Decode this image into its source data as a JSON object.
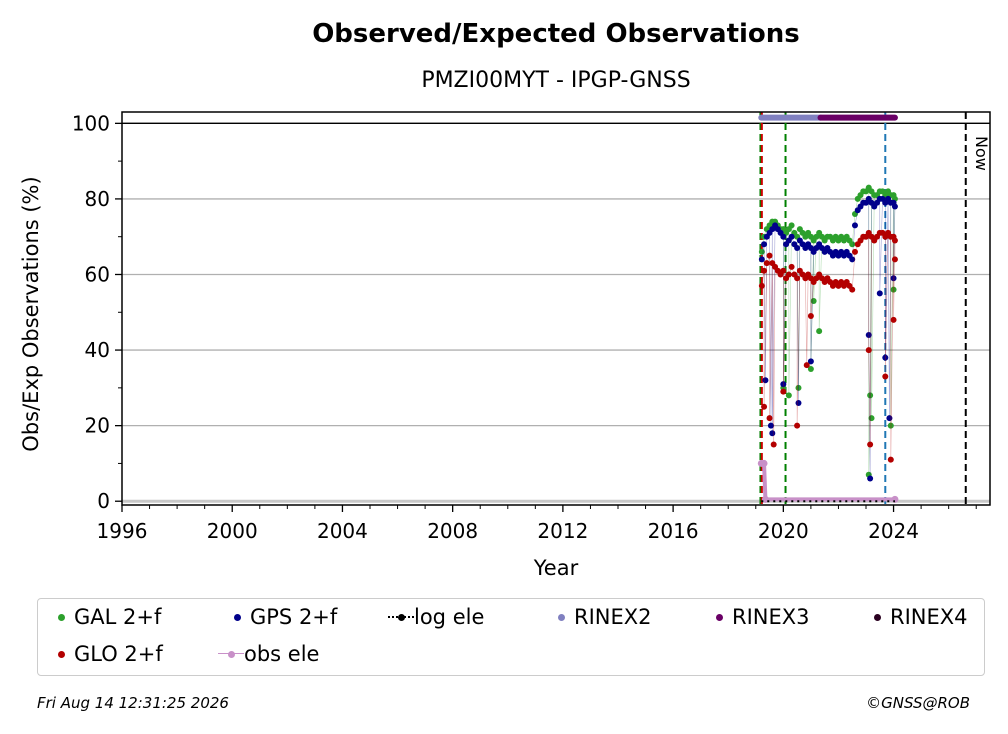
{
  "chart_data": {
    "type": "scatter",
    "title": "Observed/Expected Observations",
    "subtitle": "PMZI00MYT - IPGP-GNSS",
    "xlabel": "Year",
    "ylabel": "Obs/Exp Observations (%)",
    "xlim": [
      1996,
      2027.5
    ],
    "ylim": [
      -1,
      103
    ],
    "xticks": [
      "1996",
      "2000",
      "2004",
      "2008",
      "2012",
      "2016",
      "2020",
      "2024"
    ],
    "yticks": [
      "0",
      "20",
      "40",
      "60",
      "80",
      "100"
    ],
    "grid": "horizontal",
    "now_label": "Now",
    "now_x": 2026.62,
    "event_lines": [
      {
        "x": 2019.17,
        "color": "#008000"
      },
      {
        "x": 2019.22,
        "color": "#cc0000"
      },
      {
        "x": 2020.08,
        "color": "#008000"
      },
      {
        "x": 2023.7,
        "color": "#1f77b4"
      }
    ],
    "series": [
      {
        "name": "GAL 2+f",
        "color": "#2ca02c",
        "points": [
          [
            2019.22,
            66
          ],
          [
            2019.3,
            70
          ],
          [
            2019.4,
            72
          ],
          [
            2019.5,
            73
          ],
          [
            2019.6,
            74
          ],
          [
            2019.7,
            74
          ],
          [
            2019.8,
            73
          ],
          [
            2019.9,
            72
          ],
          [
            2020.0,
            72
          ],
          [
            2020.1,
            71
          ],
          [
            2020.2,
            72
          ],
          [
            2020.3,
            73
          ],
          [
            2020.4,
            71
          ],
          [
            2020.5,
            70
          ],
          [
            2020.6,
            72
          ],
          [
            2020.7,
            71
          ],
          [
            2020.8,
            70
          ],
          [
            2020.9,
            71
          ],
          [
            2021.0,
            70
          ],
          [
            2021.1,
            69
          ],
          [
            2021.2,
            70
          ],
          [
            2021.3,
            71
          ],
          [
            2021.4,
            70
          ],
          [
            2021.5,
            69
          ],
          [
            2021.6,
            70
          ],
          [
            2021.7,
            70
          ],
          [
            2021.8,
            69
          ],
          [
            2021.9,
            70
          ],
          [
            2022.0,
            69
          ],
          [
            2022.1,
            70
          ],
          [
            2022.2,
            69
          ],
          [
            2022.3,
            70
          ],
          [
            2022.4,
            69
          ],
          [
            2022.5,
            68
          ],
          [
            2022.6,
            76
          ],
          [
            2022.7,
            80
          ],
          [
            2022.8,
            81
          ],
          [
            2022.9,
            82
          ],
          [
            2023.0,
            82
          ],
          [
            2023.1,
            83
          ],
          [
            2023.2,
            82
          ],
          [
            2023.3,
            81
          ],
          [
            2023.4,
            81
          ],
          [
            2023.5,
            82
          ],
          [
            2023.6,
            82
          ],
          [
            2023.7,
            81
          ],
          [
            2023.8,
            82
          ],
          [
            2023.9,
            81
          ],
          [
            2024.0,
            81
          ],
          [
            2024.05,
            80
          ],
          [
            2020.0,
            30
          ],
          [
            2020.2,
            28
          ],
          [
            2020.55,
            30
          ],
          [
            2021.0,
            35
          ],
          [
            2021.1,
            53
          ],
          [
            2021.3,
            45
          ],
          [
            2023.1,
            7
          ],
          [
            2023.15,
            28
          ],
          [
            2023.2,
            22
          ],
          [
            2023.9,
            20
          ],
          [
            2024.0,
            56
          ]
        ]
      },
      {
        "name": "GPS 2+f",
        "color": "#00008b",
        "points": [
          [
            2019.22,
            64
          ],
          [
            2019.3,
            68
          ],
          [
            2019.4,
            70
          ],
          [
            2019.5,
            71
          ],
          [
            2019.6,
            72
          ],
          [
            2019.7,
            73
          ],
          [
            2019.8,
            72
          ],
          [
            2019.9,
            71
          ],
          [
            2020.0,
            70
          ],
          [
            2020.1,
            68
          ],
          [
            2020.2,
            69
          ],
          [
            2020.3,
            70
          ],
          [
            2020.4,
            68
          ],
          [
            2020.5,
            67
          ],
          [
            2020.6,
            69
          ],
          [
            2020.7,
            68
          ],
          [
            2020.8,
            67
          ],
          [
            2020.9,
            68
          ],
          [
            2021.0,
            67
          ],
          [
            2021.1,
            66
          ],
          [
            2021.2,
            67
          ],
          [
            2021.3,
            68
          ],
          [
            2021.4,
            67
          ],
          [
            2021.5,
            66
          ],
          [
            2021.6,
            67
          ],
          [
            2021.7,
            66
          ],
          [
            2021.8,
            65
          ],
          [
            2021.9,
            66
          ],
          [
            2022.0,
            65
          ],
          [
            2022.1,
            66
          ],
          [
            2022.2,
            65
          ],
          [
            2022.3,
            66
          ],
          [
            2022.4,
            65
          ],
          [
            2022.5,
            64
          ],
          [
            2022.6,
            73
          ],
          [
            2022.7,
            77
          ],
          [
            2022.8,
            78
          ],
          [
            2022.9,
            79
          ],
          [
            2023.0,
            79
          ],
          [
            2023.1,
            80
          ],
          [
            2023.2,
            79
          ],
          [
            2023.3,
            78
          ],
          [
            2023.4,
            79
          ],
          [
            2023.5,
            80
          ],
          [
            2023.6,
            80
          ],
          [
            2023.7,
            79
          ],
          [
            2023.8,
            80
          ],
          [
            2023.9,
            79
          ],
          [
            2024.0,
            79
          ],
          [
            2024.05,
            78
          ],
          [
            2019.35,
            32
          ],
          [
            2019.55,
            20
          ],
          [
            2019.6,
            18
          ],
          [
            2020.0,
            31
          ],
          [
            2020.55,
            26
          ],
          [
            2021.0,
            37
          ],
          [
            2023.1,
            44
          ],
          [
            2023.15,
            6
          ],
          [
            2023.5,
            55
          ],
          [
            2023.7,
            38
          ],
          [
            2023.85,
            22
          ],
          [
            2024.0,
            59
          ]
        ]
      },
      {
        "name": "GLO 2+f",
        "color": "#b30000",
        "points": [
          [
            2019.22,
            57
          ],
          [
            2019.3,
            61
          ],
          [
            2019.4,
            63
          ],
          [
            2019.5,
            65
          ],
          [
            2019.6,
            63
          ],
          [
            2019.7,
            62
          ],
          [
            2019.8,
            61
          ],
          [
            2019.9,
            60
          ],
          [
            2020.0,
            61
          ],
          [
            2020.1,
            59
          ],
          [
            2020.2,
            60
          ],
          [
            2020.3,
            62
          ],
          [
            2020.4,
            60
          ],
          [
            2020.5,
            59
          ],
          [
            2020.6,
            61
          ],
          [
            2020.7,
            60
          ],
          [
            2020.8,
            59
          ],
          [
            2020.9,
            60
          ],
          [
            2021.0,
            59
          ],
          [
            2021.1,
            58
          ],
          [
            2021.2,
            59
          ],
          [
            2021.3,
            60
          ],
          [
            2021.4,
            59
          ],
          [
            2021.5,
            58
          ],
          [
            2021.6,
            59
          ],
          [
            2021.7,
            58
          ],
          [
            2021.8,
            57
          ],
          [
            2021.9,
            58
          ],
          [
            2022.0,
            57
          ],
          [
            2022.1,
            58
          ],
          [
            2022.2,
            57
          ],
          [
            2022.3,
            58
          ],
          [
            2022.4,
            57
          ],
          [
            2022.5,
            56
          ],
          [
            2022.6,
            66
          ],
          [
            2022.7,
            68
          ],
          [
            2022.8,
            69
          ],
          [
            2022.9,
            70
          ],
          [
            2023.0,
            70
          ],
          [
            2023.1,
            71
          ],
          [
            2023.2,
            70
          ],
          [
            2023.3,
            69
          ],
          [
            2023.4,
            70
          ],
          [
            2023.5,
            71
          ],
          [
            2023.6,
            71
          ],
          [
            2023.7,
            70
          ],
          [
            2023.8,
            71
          ],
          [
            2023.9,
            70
          ],
          [
            2024.0,
            70
          ],
          [
            2024.05,
            69
          ],
          [
            2019.3,
            25
          ],
          [
            2019.5,
            22
          ],
          [
            2019.65,
            15
          ],
          [
            2020.0,
            29
          ],
          [
            2020.5,
            20
          ],
          [
            2020.85,
            36
          ],
          [
            2021.0,
            49
          ],
          [
            2023.1,
            40
          ],
          [
            2023.15,
            15
          ],
          [
            2023.7,
            33
          ],
          [
            2023.9,
            11
          ],
          [
            2024.0,
            48
          ],
          [
            2024.05,
            64
          ]
        ]
      },
      {
        "name": "RINEX2",
        "color": "#8080c0",
        "points": [
          [
            2019.2,
            101.5
          ],
          [
            2021.35,
            101.5
          ]
        ]
      },
      {
        "name": "RINEX3",
        "color": "#6a0066",
        "points": [
          [
            2021.35,
            101.5
          ],
          [
            2024.05,
            101.5
          ]
        ]
      },
      {
        "name": "RINEX4",
        "color": "#2a0020",
        "points": []
      },
      {
        "name": "obs ele",
        "color": "#c890c8",
        "points": [
          [
            2019.2,
            10
          ],
          [
            2019.3,
            10
          ],
          [
            2019.35,
            0.5
          ],
          [
            2024.05,
            0.5
          ]
        ]
      },
      {
        "name": "log ele",
        "color": "#000000",
        "points": [
          [
            2019.2,
            0
          ],
          [
            2024.05,
            0
          ]
        ]
      }
    ]
  },
  "legend": {
    "items": [
      {
        "label": "GAL 2+f",
        "color": "#2ca02c",
        "marker": "dot"
      },
      {
        "label": "GPS 2+f",
        "color": "#00008b",
        "marker": "dot"
      },
      {
        "label": "log ele",
        "color": "#000000",
        "marker": "dotline"
      },
      {
        "label": "RINEX2",
        "color": "#8080c0",
        "marker": "dot"
      },
      {
        "label": "RINEX3",
        "color": "#6a0066",
        "marker": "dot"
      },
      {
        "label": "RINEX4",
        "color": "#2a0020",
        "marker": "dot"
      },
      {
        "label": "GLO 2+f",
        "color": "#b30000",
        "marker": "dot"
      },
      {
        "label": "obs ele",
        "color": "#c890c8",
        "marker": "line"
      }
    ]
  },
  "footer": {
    "timestamp": "Fri Aug 14 12:31:25 2026",
    "credit": "©GNSS@ROB"
  }
}
